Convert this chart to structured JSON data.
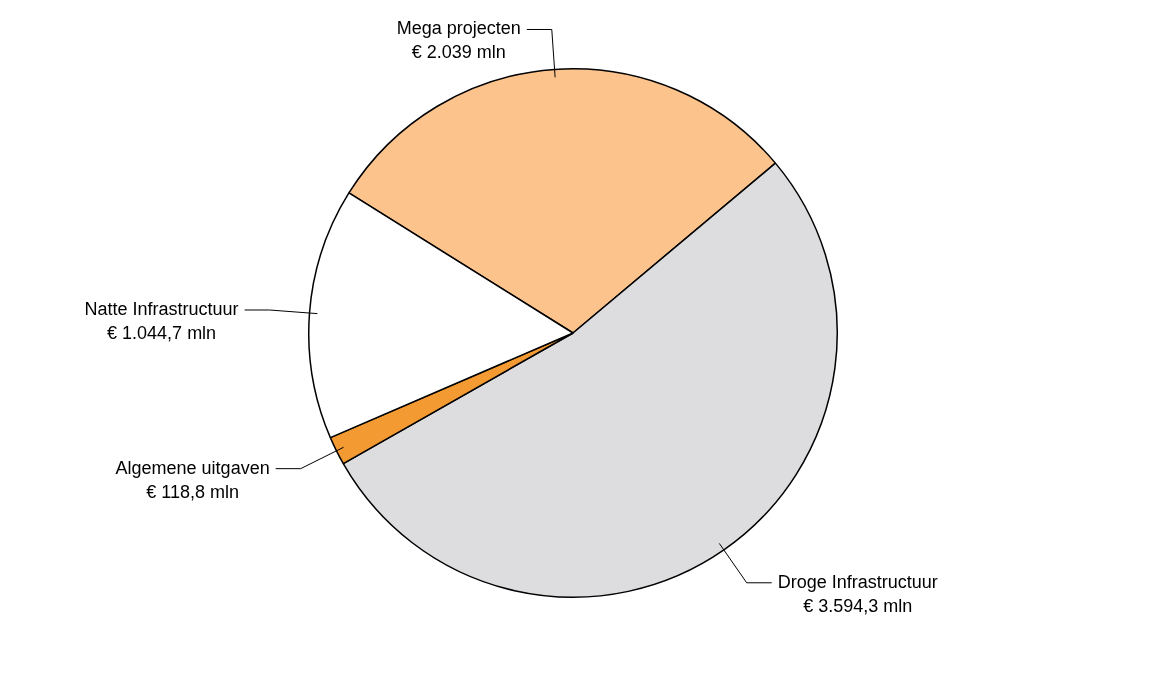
{
  "chart_data": {
    "type": "pie",
    "categories": [
      "Mega projecten",
      "Droge Infrastructuur",
      "Algemene uitgaven",
      "Natte Infrastructuur"
    ],
    "values": [
      2039,
      3594.3,
      118.8,
      1044.7
    ],
    "value_labels": [
      "€ 2.039 mln",
      "€ 3.594,3 mln",
      "€ 118,8 mln",
      "€ 1.044,7 mln"
    ],
    "colors": [
      "#fdc38c",
      "#dddde0",
      "#f39a33",
      "#ffffff"
    ],
    "legend": false
  }
}
